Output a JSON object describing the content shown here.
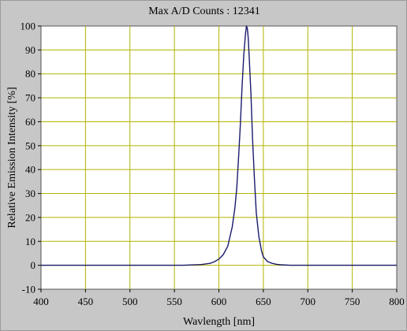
{
  "chart_data": {
    "type": "line",
    "title": "Max A/D Counts : 12341",
    "xlabel": "Wavlength [nm]",
    "ylabel": "Relative Emission Intensity [%]",
    "xlim": [
      400,
      800
    ],
    "ylim": [
      -10,
      100
    ],
    "xticks": [
      400,
      450,
      500,
      550,
      600,
      650,
      700,
      750,
      800
    ],
    "yticks": [
      -10,
      0,
      10,
      20,
      30,
      40,
      50,
      60,
      70,
      80,
      90,
      100
    ],
    "grid": true,
    "colors": {
      "plot_bg": "#ffffff",
      "grid": "#b3b300",
      "line": "#1a1a6e",
      "frame": "#c7c7c7"
    },
    "series": [
      {
        "x": [
          400,
          540,
          560,
          580,
          590,
          595,
          600,
          605,
          610,
          615,
          618,
          620,
          622,
          624,
          626,
          628,
          630,
          631,
          632,
          633,
          634,
          636,
          638,
          640,
          642,
          645,
          648,
          650,
          655,
          660,
          665,
          670,
          680,
          800
        ],
        "y": [
          0,
          0,
          0,
          0.3,
          0.8,
          1.5,
          2.6,
          4.5,
          8,
          16,
          24,
          32,
          44,
          58,
          74,
          88,
          97,
          100,
          99,
          95,
          88,
          72,
          52,
          36,
          22,
          12,
          6,
          3.5,
          1.5,
          0.8,
          0.4,
          0.2,
          0,
          0
        ]
      }
    ]
  }
}
